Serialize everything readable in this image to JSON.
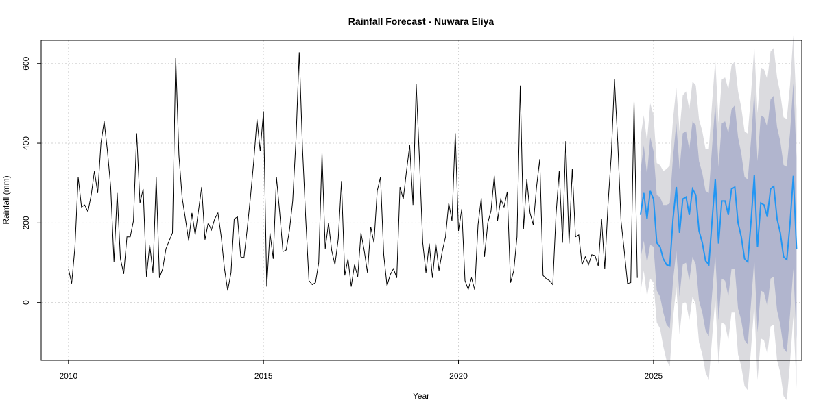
{
  "chart_data": {
    "type": "line",
    "title": "Rainfall Forecast - Nuwara Eliya",
    "xlabel": "Year",
    "ylabel": "Rainfall (mm)",
    "xlim": [
      2009.3,
      2028.8
    ],
    "ylim": [
      -145,
      658
    ],
    "x_ticks": [
      2010,
      2015,
      2020,
      2025
    ],
    "y_ticks": [
      0,
      200,
      400,
      600
    ],
    "grid": true,
    "legend": "none",
    "x_start": 2010.0,
    "x_step": 0.08333333,
    "colors": {
      "observed": "#000000",
      "forecast_mean": "#2196f3",
      "interval_80": "#b1b5ce",
      "interval_95": "#dbdbdf",
      "grid": "#d3d3d3"
    },
    "series": [
      {
        "role": "observed",
        "values": [
          85,
          48,
          140,
          315,
          240,
          245,
          228,
          270,
          330,
          275,
          400,
          455,
          380,
          290,
          102,
          275,
          110,
          72,
          165,
          165,
          205,
          425,
          250,
          285,
          65,
          145,
          75,
          315,
          62,
          85,
          135,
          155,
          175,
          615,
          370,
          262,
          210,
          155,
          225,
          170,
          230,
          290,
          158,
          200,
          182,
          210,
          225,
          165,
          85,
          30,
          75,
          210,
          215,
          115,
          112,
          185,
          265,
          355,
          460,
          380,
          480,
          40,
          175,
          110,
          315,
          225,
          128,
          132,
          182,
          255,
          410,
          628,
          390,
          210,
          55,
          45,
          50,
          100,
          375,
          135,
          200,
          130,
          95,
          160,
          305,
          68,
          110,
          40,
          95,
          65,
          175,
          130,
          75,
          190,
          150,
          280,
          315,
          120,
          42,
          70,
          85,
          62,
          290,
          260,
          330,
          395,
          245,
          548,
          355,
          150,
          75,
          148,
          62,
          148,
          80,
          128,
          165,
          250,
          205,
          425,
          180,
          235,
          55,
          33,
          62,
          32,
          195,
          262,
          115,
          200,
          230,
          318,
          205,
          260,
          240,
          278,
          50,
          80,
          165,
          545,
          185,
          310,
          225,
          195,
          290,
          360,
          68,
          60,
          55,
          45,
          220,
          330,
          150,
          405,
          148,
          335,
          165,
          170,
          95,
          115,
          95,
          120,
          118,
          92,
          210,
          85,
          245,
          370,
          560,
          400,
          205,
          130,
          48,
          50,
          505,
          62
        ]
      },
      {
        "role": "forecast_mean",
        "values": [
          220,
          275,
          210,
          280,
          260,
          150,
          140,
          110,
          95,
          92,
          210,
          290,
          175,
          260,
          265,
          220,
          285,
          270,
          180,
          150,
          105,
          95,
          205,
          310,
          148,
          255,
          255,
          220,
          285,
          290,
          200,
          165,
          110,
          102,
          205,
          320,
          140,
          250,
          245,
          215,
          285,
          292,
          210,
          175,
          115,
          108,
          198,
          318,
          135
        ]
      },
      {
        "role": "interval_80",
        "lower": [
          110,
          155,
          100,
          145,
          140,
          30,
          15,
          -25,
          -55,
          -65,
          55,
          130,
          15,
          95,
          100,
          55,
          115,
          95,
          5,
          -25,
          -70,
          -85,
          20,
          120,
          -45,
          60,
          55,
          15,
          85,
          85,
          -15,
          -45,
          -95,
          -105,
          0,
          110,
          -75,
          30,
          25,
          -10,
          60,
          65,
          -20,
          -55,
          -115,
          -125,
          -30,
          85,
          -95
        ],
        "upper": [
          330,
          395,
          320,
          415,
          380,
          270,
          265,
          245,
          245,
          249,
          365,
          450,
          335,
          425,
          430,
          385,
          455,
          445,
          355,
          325,
          280,
          275,
          390,
          500,
          341,
          450,
          455,
          425,
          485,
          495,
          415,
          375,
          315,
          309,
          410,
          530,
          355,
          470,
          465,
          440,
          510,
          519,
          440,
          405,
          345,
          341,
          426,
          551,
          365
        ]
      },
      {
        "role": "interval_95",
        "lower": [
          25,
          80,
          15,
          60,
          50,
          -50,
          -65,
          -110,
          -145,
          -160,
          -40,
          40,
          -80,
          0,
          0,
          -45,
          15,
          -5,
          -100,
          -130,
          -175,
          -195,
          -90,
          10,
          -155,
          -50,
          -55,
          -95,
          -25,
          -25,
          -130,
          -160,
          -210,
          -220,
          -115,
          -5,
          -195,
          -90,
          -95,
          -130,
          -60,
          -55,
          -145,
          -175,
          -235,
          -245,
          -150,
          -35,
          -215
        ],
        "upper": [
          415,
          470,
          405,
          500,
          470,
          350,
          345,
          330,
          335,
          344,
          460,
          540,
          430,
          520,
          530,
          485,
          555,
          545,
          460,
          430,
          385,
          385,
          500,
          610,
          451,
          560,
          565,
          535,
          595,
          605,
          530,
          490,
          430,
          424,
          525,
          645,
          475,
          590,
          585,
          560,
          630,
          639,
          565,
          525,
          465,
          461,
          546,
          671,
          485
        ]
      }
    ]
  }
}
